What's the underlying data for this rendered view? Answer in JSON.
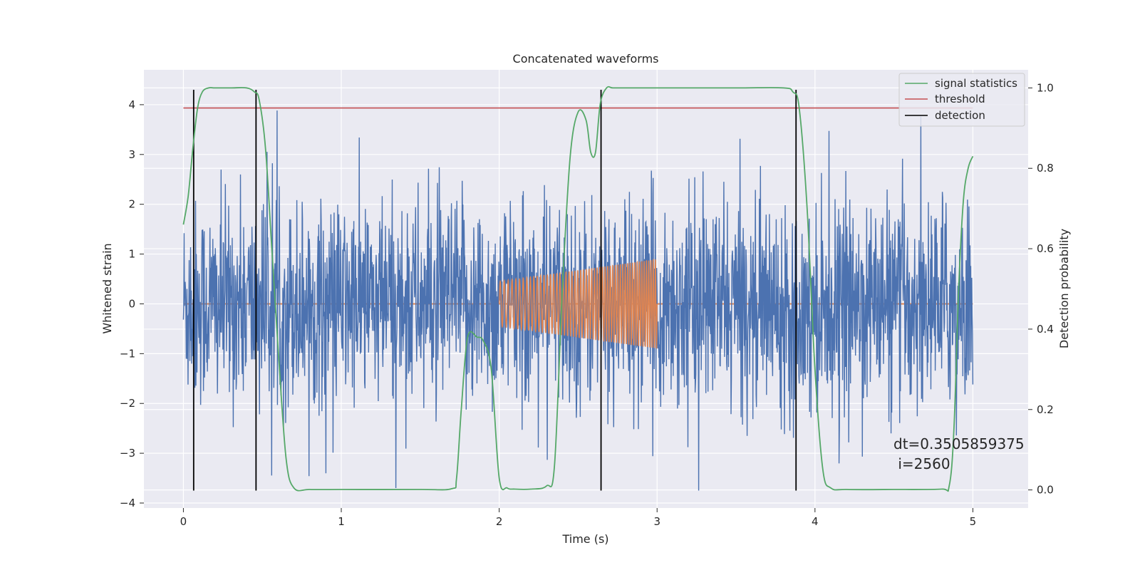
{
  "chart_data": {
    "type": "line",
    "title": "Concatenated waveforms",
    "xlabel": "Time (s)",
    "ylabel_left": "Whitened strain",
    "ylabel_right": "Detection probability",
    "xlim": [
      -0.25,
      5.35
    ],
    "ylim_left": [
      -4.1,
      4.7
    ],
    "ylim_right": [
      -0.045,
      1.045
    ],
    "x_ticks": [
      0,
      1,
      2,
      3,
      4,
      5
    ],
    "y_ticks_left": [
      -4,
      -3,
      -2,
      -1,
      0,
      1,
      2,
      3,
      4
    ],
    "y_ticks_right": [
      0.0,
      0.2,
      0.4,
      0.6,
      0.8,
      1.0
    ],
    "x_tick_labels": [
      "0",
      "1",
      "2",
      "3",
      "4",
      "5"
    ],
    "y_tick_labels_left": [
      "−4",
      "−3",
      "−2",
      "−1",
      "0",
      "1",
      "2",
      "3",
      "4"
    ],
    "y_tick_labels_right": [
      "0.0",
      "0.2",
      "0.4",
      "0.6",
      "0.8",
      "1.0"
    ],
    "grid": true,
    "legend_position": "top-right",
    "legend": [
      {
        "label": "signal statistics",
        "color": "#55a868"
      },
      {
        "label": "threshold",
        "color": "#c44e52"
      },
      {
        "label": "detection",
        "color": "#000000"
      }
    ],
    "noise": {
      "x_range": [
        0,
        5
      ],
      "typical_amplitude": 1.2,
      "peak_max": 4.3,
      "peak_min": -3.75,
      "color": "#4c72b0"
    },
    "injected_signal": {
      "x_range": [
        2,
        3
      ],
      "amplitude_start": 0.45,
      "amplitude_end": 0.9,
      "cycles": 55,
      "baseline": 0,
      "baseline_range": [
        0,
        5
      ],
      "color": "#dd8452"
    },
    "threshold": {
      "value": 0.95,
      "x_range": [
        0,
        5
      ],
      "color": "#c44e52"
    },
    "detections": {
      "x": [
        0.065,
        0.46,
        2.645,
        3.88
      ],
      "y_range": [
        4.3,
        -3.75
      ],
      "color": "#000000"
    },
    "signal_statistics": {
      "color": "#55a868",
      "x": [
        0.0,
        0.03,
        0.06,
        0.09,
        0.12,
        0.16,
        0.2,
        0.3,
        0.4,
        0.45,
        0.48,
        0.52,
        0.56,
        0.6,
        0.65,
        0.7,
        0.8,
        1.0,
        1.5,
        1.7,
        1.73,
        1.76,
        1.8,
        1.86,
        1.9,
        1.95,
        2.0,
        2.05,
        2.1,
        2.2,
        2.3,
        2.35,
        2.4,
        2.45,
        2.5,
        2.55,
        2.58,
        2.61,
        2.64,
        2.68,
        2.72,
        2.8,
        3.0,
        3.5,
        3.8,
        3.86,
        3.9,
        3.95,
        4.0,
        4.05,
        4.1,
        4.2,
        4.5,
        4.8,
        4.85,
        4.88,
        4.91,
        4.94,
        4.97,
        5.0
      ],
      "y": [
        0.66,
        0.73,
        0.85,
        0.95,
        0.99,
        1.0,
        1.0,
        1.0,
        1.0,
        0.99,
        0.97,
        0.85,
        0.6,
        0.35,
        0.08,
        0.005,
        0.001,
        0.001,
        0.001,
        0.003,
        0.03,
        0.2,
        0.38,
        0.38,
        0.37,
        0.3,
        0.03,
        0.005,
        0.002,
        0.002,
        0.01,
        0.06,
        0.5,
        0.83,
        0.94,
        0.92,
        0.84,
        0.84,
        0.96,
        1.0,
        1.0,
        1.0,
        1.0,
        1.0,
        1.0,
        0.99,
        0.95,
        0.7,
        0.3,
        0.05,
        0.005,
        0.001,
        0.001,
        0.002,
        0.01,
        0.15,
        0.5,
        0.72,
        0.8,
        0.83
      ]
    },
    "annotation": {
      "line1": "dt=0.3505859375",
      "line2": " i=2560"
    }
  }
}
